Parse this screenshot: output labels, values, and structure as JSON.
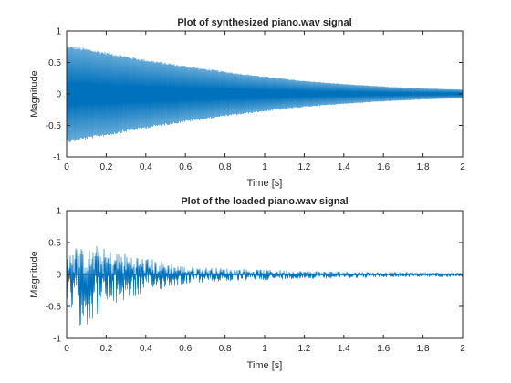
{
  "figure": {
    "background": "#ffffff",
    "axis_color": "#262626",
    "line_color": "#0072BD"
  },
  "chart_data": [
    {
      "type": "line",
      "title": "Plot of synthesized piano.wav signal",
      "xlabel": "Time [s]",
      "ylabel": "Magnitude",
      "xlim": [
        0,
        2
      ],
      "ylim": [
        -1,
        1
      ],
      "xticks": [
        0,
        0.2,
        0.4,
        0.6,
        0.8,
        1,
        1.2,
        1.4,
        1.6,
        1.8,
        2
      ],
      "xtick_labels": [
        "0",
        "0.2",
        "0.4",
        "0.6",
        "0.8",
        "1",
        "1.2",
        "1.4",
        "1.6",
        "1.8",
        "2"
      ],
      "yticks": [
        -1,
        -0.5,
        0,
        0.5,
        1
      ],
      "ytick_labels": [
        "-1",
        "-0.5",
        "0",
        "0.5",
        "1"
      ],
      "grid": false,
      "series": [
        {
          "color": "#0072BD",
          "description": "dense oscillation with decaying symmetric envelope",
          "envelope_t": [
            0,
            0.2,
            0.4,
            0.6,
            0.8,
            1.0,
            1.2,
            1.4,
            1.6,
            1.8,
            2.0
          ],
          "envelope_upper": [
            0.78,
            0.67,
            0.55,
            0.45,
            0.36,
            0.28,
            0.21,
            0.16,
            0.12,
            0.09,
            0.07
          ],
          "envelope_lower": [
            -0.78,
            -0.67,
            -0.55,
            -0.45,
            -0.36,
            -0.28,
            -0.21,
            -0.16,
            -0.12,
            -0.09,
            -0.07
          ]
        }
      ]
    },
    {
      "type": "line",
      "title": "Plot of the loaded piano.wav signal",
      "xlabel": "Time [s]",
      "ylabel": "Magnitude",
      "xlim": [
        0,
        2
      ],
      "ylim": [
        -1,
        1
      ],
      "xticks": [
        0,
        0.2,
        0.4,
        0.6,
        0.8,
        1,
        1.2,
        1.4,
        1.6,
        1.8,
        2
      ],
      "xtick_labels": [
        "0",
        "0.2",
        "0.4",
        "0.6",
        "0.8",
        "1",
        "1.2",
        "1.4",
        "1.6",
        "1.8",
        "2"
      ],
      "yticks": [
        -1,
        -0.5,
        0,
        0.5,
        1
      ],
      "ytick_labels": [
        "-1",
        "-0.5",
        "0",
        "0.5",
        "1"
      ],
      "grid": false,
      "series": [
        {
          "color": "#0072BD",
          "description": "noisy recorded waveform with irregular decaying envelope",
          "envelope_t": [
            0,
            0.05,
            0.1,
            0.15,
            0.2,
            0.3,
            0.4,
            0.5,
            0.6,
            0.8,
            1.0,
            1.2,
            1.4,
            1.6,
            1.8,
            2.0
          ],
          "envelope_upper": [
            0.62,
            0.45,
            0.38,
            0.46,
            0.4,
            0.35,
            0.27,
            0.2,
            0.13,
            0.1,
            0.08,
            0.06,
            0.05,
            0.04,
            0.035,
            0.03
          ],
          "envelope_lower": [
            -0.6,
            -0.78,
            -0.84,
            -0.65,
            -0.55,
            -0.42,
            -0.3,
            -0.22,
            -0.15,
            -0.11,
            -0.09,
            -0.07,
            -0.06,
            -0.05,
            -0.04,
            -0.04
          ]
        }
      ]
    }
  ]
}
